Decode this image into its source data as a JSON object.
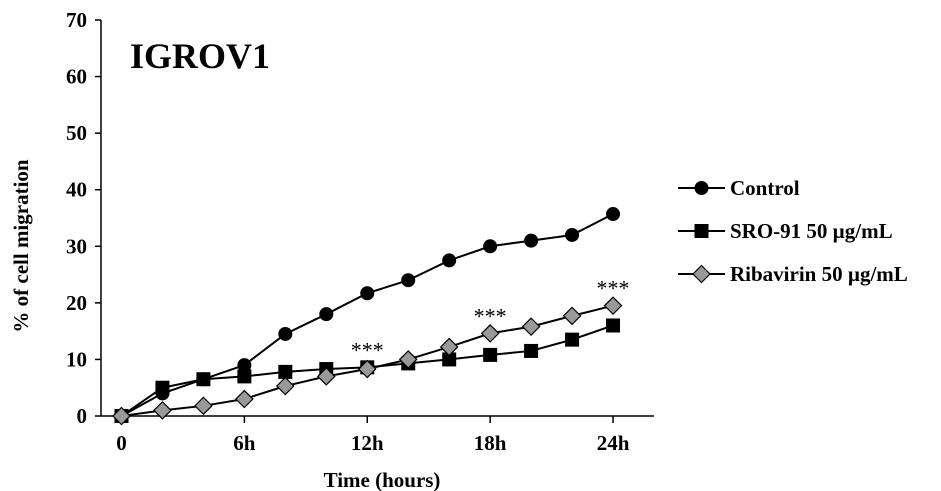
{
  "chart_data": {
    "type": "line",
    "title": "IGROV1",
    "xlabel": "Time (hours)",
    "ylabel": "% of cell migration",
    "x": [
      0,
      2,
      4,
      6,
      8,
      10,
      12,
      14,
      16,
      18,
      20,
      22,
      24
    ],
    "x_ticks": [
      {
        "x": 0,
        "label": "0"
      },
      {
        "x": 6,
        "label": "6h"
      },
      {
        "x": 12,
        "label": "12h"
      },
      {
        "x": 18,
        "label": "18h"
      },
      {
        "x": 24,
        "label": "24h"
      }
    ],
    "xlim": [
      -1,
      26
    ],
    "ylim": [
      0,
      70
    ],
    "yticks": [
      0,
      10,
      20,
      30,
      40,
      50,
      60,
      70
    ],
    "grid": false,
    "legend_position": "right",
    "series": [
      {
        "name": "Control",
        "marker": "circle",
        "color": "#000000",
        "values": [
          0,
          4.0,
          6.5,
          9.0,
          14.5,
          18.0,
          21.7,
          24.0,
          27.5,
          30.0,
          31.0,
          32.0,
          35.7
        ]
      },
      {
        "name": "SRO-91 50 µg/mL",
        "marker": "square",
        "color": "#000000",
        "values": [
          0,
          5.0,
          6.5,
          7.0,
          7.8,
          8.3,
          8.6,
          9.3,
          10.0,
          10.8,
          11.5,
          13.5,
          16.0
        ]
      },
      {
        "name": "Ribavirin 50 µg/mL",
        "marker": "diamond",
        "color": "#999999",
        "values": [
          0,
          1.0,
          1.8,
          3.0,
          5.3,
          7.0,
          8.3,
          10.0,
          12.2,
          14.6,
          15.8,
          17.7,
          19.5
        ]
      }
    ],
    "annotations": [
      {
        "text": "***",
        "x": 12,
        "y": 8.6
      },
      {
        "text": "***",
        "x": 18,
        "y": 14.6
      },
      {
        "text": "***",
        "x": 24,
        "y": 19.5
      }
    ]
  }
}
